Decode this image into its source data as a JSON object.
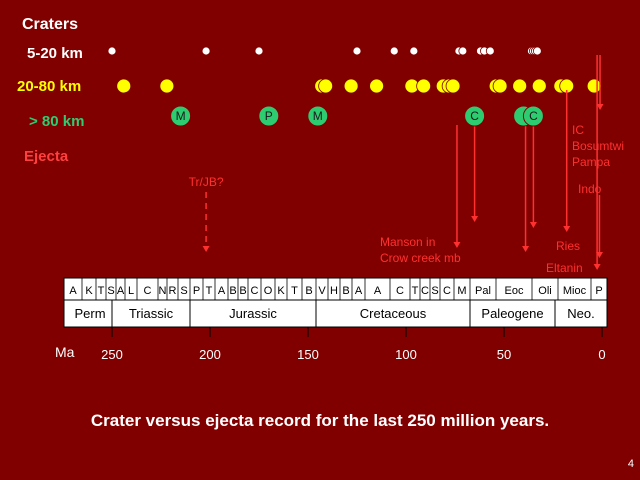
{
  "title": "Craters",
  "rows": {
    "small": {
      "label": "5-20 km",
      "color": "#ffffff",
      "ages": [
        250,
        202,
        175,
        125,
        106,
        96,
        73,
        71,
        62,
        60,
        57,
        36,
        35,
        34,
        33
      ]
    },
    "medium": {
      "label": "20-80 km",
      "color": "#ffff00",
      "ages": [
        244,
        222,
        143,
        141,
        128,
        115,
        97,
        91,
        81,
        78,
        76,
        54,
        52,
        42,
        32,
        21,
        18,
        4
      ]
    },
    "large": {
      "label": "> 80 km",
      "color": "#2ecc71",
      "ages": [
        {
          "age": 215,
          "label": "M"
        },
        {
          "age": 170,
          "label": "P"
        },
        {
          "age": 145,
          "label": "M"
        },
        {
          "age": 65,
          "label": "C"
        },
        {
          "age": 40,
          "label": ""
        },
        {
          "age": 35,
          "label": "C"
        }
      ]
    }
  },
  "ejecta_label": "Ejecta",
  "ejecta": [
    {
      "age": 202,
      "label": "Tr/JB?"
    },
    {
      "age": 74,
      "label": "Manson in\nCrow creek mb"
    },
    {
      "age": 65,
      "label": ""
    },
    {
      "age": 39,
      "label": ""
    },
    {
      "age": 35,
      "label": ""
    },
    {
      "age": 18,
      "label": "Ries"
    },
    {
      "age": 2.5,
      "label": "Eltanin"
    },
    {
      "age": 1.3,
      "label": "Indo"
    },
    {
      "age": 1.0,
      "label": "IC\nBosumtwi\nPampa"
    }
  ],
  "stages": [
    "A",
    "K",
    "T",
    "S",
    "A",
    "L",
    "C",
    "N",
    "R",
    "S",
    "P",
    "T",
    "A",
    "B",
    "B",
    "C",
    "O",
    "K",
    "T",
    "B",
    "V",
    "H",
    "B",
    "A",
    "A",
    "C",
    "T",
    "C",
    "S",
    "C",
    "M",
    "Pal",
    "Eoc",
    "Oli",
    "Mioc",
    "P"
  ],
  "periods": [
    "Perm",
    "Triassic",
    "Jurassic",
    "Cretaceous",
    "Paleogene",
    "Neo."
  ],
  "axis": {
    "unit": "Ma",
    "ticks": [
      250,
      200,
      150,
      100,
      50,
      0
    ]
  },
  "caption": "Crater versus ejecta record for the last 250 million years.",
  "page_number": "4"
}
